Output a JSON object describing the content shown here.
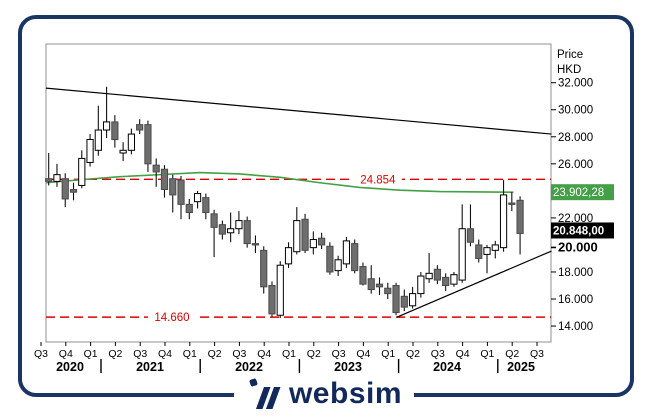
{
  "axis": {
    "price_title_line1": "Price",
    "price_title_line2": "HKD",
    "ticks": [
      {
        "label": "32.000",
        "value": 32,
        "bold": false
      },
      {
        "label": "30.000",
        "value": 30,
        "bold": false
      },
      {
        "label": "28.000",
        "value": 28,
        "bold": false
      },
      {
        "label": "26.000",
        "value": 26,
        "bold": false
      },
      {
        "label": "22.000",
        "value": 22,
        "bold": false
      },
      {
        "label": "20.000",
        "value": 20,
        "bold": true
      },
      {
        "label": "18.000",
        "value": 18,
        "bold": false
      },
      {
        "label": "16.000",
        "value": 16,
        "bold": false
      },
      {
        "label": "14.000",
        "value": 14,
        "bold": false
      }
    ],
    "quarters": [
      "Q3",
      "Q4",
      "Q1",
      "Q2",
      "Q3",
      "Q4",
      "Q1",
      "Q2",
      "Q3",
      "Q4",
      "Q1",
      "Q2",
      "Q3",
      "Q4",
      "Q1",
      "Q2",
      "Q3",
      "Q4",
      "Q1",
      "Q2",
      "Q3"
    ],
    "years": [
      "2020",
      "2021",
      "2022",
      "2023",
      "2024",
      "2025"
    ]
  },
  "badges": [
    {
      "text": "23.902,28",
      "value": 23.902,
      "bg": "#43a047",
      "fg": "#ffffff",
      "bold": false
    },
    {
      "text": "20.848,00",
      "value": 20.848,
      "bg": "#000000",
      "fg": "#ffffff",
      "bold": true
    }
  ],
  "levels": [
    {
      "label": "24.854",
      "value": 24.854,
      "label_center_month": 39.8
    },
    {
      "label": "14.660",
      "value": 14.66,
      "label_center_month": 14.9
    }
  ],
  "logo": {
    "text": "websim"
  },
  "colors": {
    "up_candle": "#ffffff",
    "down_candle": "#6e6e6e",
    "wick": "#111111",
    "ma_line": "#43a047",
    "level_line": "#dd0000",
    "trend_line": "#000000",
    "plot_border": "#909090",
    "frame": "#1a3464",
    "logo": "#13295c"
  },
  "chart_data": {
    "type": "candlestick",
    "title": "",
    "ylabel": "Price HKD",
    "x_range": [
      "2020-Q3",
      "2025-Q3"
    ],
    "y_range": [
      12.8,
      34.9
    ],
    "grid": false,
    "legend": "none",
    "last_price_label": "20.848,00",
    "moving_average_label": "23.902,28",
    "resistance_level": 24.854,
    "support_level": 14.66,
    "columns": [
      "month",
      "open",
      "high",
      "low",
      "close"
    ],
    "candles": [
      [
        "2020-07",
        24.9,
        26.8,
        24.4,
        24.7
      ],
      [
        "2020-08",
        24.7,
        26.0,
        24.3,
        25.2
      ],
      [
        "2020-09",
        24.9,
        25.3,
        22.8,
        23.4
      ],
      [
        "2020-10",
        24.1,
        24.6,
        23.3,
        23.9
      ],
      [
        "2020-11",
        24.4,
        27.0,
        24.2,
        26.4
      ],
      [
        "2020-12",
        26.1,
        28.2,
        25.8,
        27.8
      ],
      [
        "2021-01",
        27.0,
        30.3,
        26.6,
        28.5
      ],
      [
        "2021-02",
        28.5,
        31.7,
        27.9,
        29.1
      ],
      [
        "2021-03",
        29.1,
        29.6,
        27.2,
        27.8
      ],
      [
        "2021-04",
        26.8,
        27.6,
        26.2,
        27.0
      ],
      [
        "2021-05",
        27.0,
        28.6,
        26.7,
        28.2
      ],
      [
        "2021-06",
        28.9,
        29.3,
        28.2,
        28.5
      ],
      [
        "2021-07",
        28.9,
        29.2,
        25.4,
        26.0
      ],
      [
        "2021-08",
        25.9,
        26.4,
        24.3,
        25.4
      ],
      [
        "2021-09",
        25.6,
        25.9,
        23.5,
        24.1
      ],
      [
        "2021-10",
        24.9,
        25.2,
        22.4,
        23.7
      ],
      [
        "2021-11",
        24.8,
        25.1,
        21.9,
        23.0
      ],
      [
        "2021-12",
        23.0,
        23.4,
        21.9,
        22.4
      ],
      [
        "2022-01",
        23.2,
        24.0,
        22.7,
        23.8
      ],
      [
        "2022-02",
        23.5,
        23.8,
        21.9,
        22.4
      ],
      [
        "2022-03",
        22.3,
        22.6,
        19.1,
        21.3
      ],
      [
        "2022-04",
        21.5,
        21.8,
        20.4,
        20.8
      ],
      [
        "2022-05",
        20.9,
        22.4,
        20.2,
        21.2
      ],
      [
        "2022-06",
        21.2,
        22.5,
        20.8,
        21.8
      ],
      [
        "2022-07",
        21.8,
        22.1,
        19.8,
        20.1
      ],
      [
        "2022-08",
        20.1,
        20.7,
        19.4,
        20.0
      ],
      [
        "2022-09",
        19.6,
        19.9,
        16.4,
        16.9
      ],
      [
        "2022-10",
        17.0,
        17.3,
        14.7,
        14.9
      ],
      [
        "2022-11",
        14.8,
        18.8,
        14.6,
        18.5
      ],
      [
        "2022-12",
        18.6,
        20.2,
        18.3,
        19.8
      ],
      [
        "2023-01",
        19.5,
        22.8,
        19.3,
        21.8
      ],
      [
        "2023-02",
        21.9,
        22.3,
        19.4,
        19.6
      ],
      [
        "2023-03",
        19.8,
        21.0,
        19.3,
        20.4
      ],
      [
        "2023-04",
        20.5,
        20.9,
        19.7,
        20.0
      ],
      [
        "2023-05",
        19.9,
        20.2,
        17.8,
        18.0
      ],
      [
        "2023-06",
        18.1,
        19.2,
        17.7,
        18.9
      ],
      [
        "2023-07",
        18.6,
        20.6,
        18.3,
        20.3
      ],
      [
        "2023-08",
        20.1,
        20.4,
        17.9,
        18.1
      ],
      [
        "2023-09",
        18.4,
        18.7,
        17.0,
        17.1
      ],
      [
        "2023-10",
        17.5,
        18.5,
        16.4,
        16.7
      ],
      [
        "2023-11",
        17.1,
        17.6,
        16.3,
        16.9
      ],
      [
        "2023-12",
        16.8,
        17.2,
        16.0,
        16.4
      ],
      [
        "2024-01",
        17.0,
        17.2,
        14.8,
        15.0
      ],
      [
        "2024-02",
        16.2,
        16.7,
        15.1,
        15.4
      ],
      [
        "2024-03",
        15.5,
        16.9,
        15.3,
        16.4
      ],
      [
        "2024-04",
        16.4,
        18.0,
        16.1,
        17.7
      ],
      [
        "2024-05",
        17.5,
        19.4,
        17.2,
        17.9
      ],
      [
        "2024-06",
        18.2,
        18.5,
        17.1,
        17.4
      ],
      [
        "2024-07",
        17.6,
        17.9,
        16.6,
        17.0
      ],
      [
        "2024-08",
        17.1,
        18.0,
        16.9,
        17.8
      ],
      [
        "2024-09",
        17.4,
        23.0,
        17.2,
        21.2
      ],
      [
        "2024-10",
        21.2,
        23.0,
        19.9,
        20.2
      ],
      [
        "2024-11",
        20.0,
        20.4,
        18.7,
        19.0
      ],
      [
        "2024-12",
        19.3,
        20.0,
        17.9,
        19.8
      ],
      [
        "2025-01",
        19.6,
        20.3,
        19.0,
        20.0
      ],
      [
        "2025-02",
        19.8,
        24.8,
        19.5,
        23.7
      ],
      [
        "2025-03",
        23.1,
        23.9,
        22.5,
        23.0
      ],
      [
        "2025-04",
        23.3,
        23.6,
        19.3,
        20.85
      ]
    ],
    "moving_average_points": [
      [
        -0.3,
        24.6
      ],
      [
        4.4,
        24.85
      ],
      [
        8.6,
        25.05
      ],
      [
        13.5,
        25.2
      ],
      [
        18.3,
        25.35
      ],
      [
        23.1,
        25.25
      ],
      [
        28.0,
        25.0
      ],
      [
        32.8,
        24.6
      ],
      [
        37.6,
        24.25
      ],
      [
        42.5,
        24.05
      ],
      [
        47.3,
        23.95
      ],
      [
        52.2,
        23.92
      ],
      [
        56.2,
        23.9
      ]
    ],
    "trendlines": [
      {
        "name": "descending-resistance",
        "from_month": -0.33,
        "from_price": 31.6,
        "to_month": 60.8,
        "to_price": 28.2
      },
      {
        "name": "ascending-support",
        "from_month": 42.1,
        "from_price": 14.66,
        "to_month": 60.8,
        "to_price": 19.55
      }
    ]
  }
}
